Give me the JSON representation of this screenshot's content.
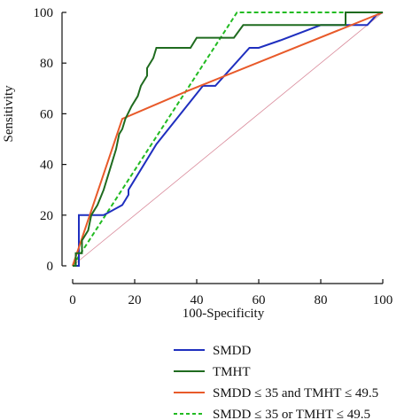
{
  "chart_data": {
    "type": "line",
    "xlabel": "100-Specificity",
    "ylabel": "Sensitivity",
    "xlim": [
      0,
      100
    ],
    "ylim": [
      0,
      100
    ],
    "xticks": [
      "0",
      "20",
      "40",
      "60",
      "80",
      "100"
    ],
    "yticks": [
      "0",
      "20",
      "40",
      "60",
      "80",
      "100"
    ],
    "grid": false,
    "legend_position": "bottom",
    "reference_line": {
      "x": [
        0,
        100
      ],
      "y": [
        0,
        100
      ],
      "color": "#d98a9a"
    },
    "series": [
      {
        "name": "SMDD",
        "color": "#1f2fbf",
        "dash": false,
        "x": [
          0,
          2,
          2,
          8,
          8,
          10,
          16,
          18,
          18,
          27,
          27,
          42,
          46,
          57,
          60,
          67,
          80,
          89,
          95,
          98,
          100
        ],
        "y": [
          0,
          0,
          20,
          20,
          20,
          20,
          24,
          28,
          30,
          48,
          48,
          71,
          71,
          86,
          86,
          89,
          95,
          95,
          95,
          99,
          100
        ]
      },
      {
        "name": "TMHT",
        "color": "#1f6b1f",
        "dash": false,
        "x": [
          0,
          1,
          1,
          3,
          3,
          5,
          6,
          8,
          10,
          12,
          14,
          15,
          16,
          17,
          19,
          21,
          22,
          24,
          24,
          26,
          27,
          29,
          29,
          31,
          36,
          38,
          40,
          47,
          52,
          55,
          57,
          66,
          88,
          88,
          90,
          90,
          100
        ],
        "y": [
          0,
          0,
          5,
          5,
          10,
          14,
          20,
          24,
          30,
          38,
          46,
          52,
          54,
          58,
          63,
          67,
          71,
          75,
          78,
          82,
          86,
          86,
          86,
          86,
          86,
          86,
          90,
          90,
          90,
          95,
          95,
          95,
          95,
          100,
          100,
          100,
          100
        ]
      },
      {
        "name": "SMDD ≤ 35 and TMHT ≤ 49.5",
        "color": "#e85a2a",
        "dash": false,
        "x": [
          0,
          16,
          37,
          100
        ],
        "y": [
          0,
          58,
          69,
          100
        ]
      },
      {
        "name": "SMDD ≤ 35 or TMHT ≤ 49.5",
        "color": "#22bb22",
        "dash": true,
        "x": [
          0,
          53,
          100
        ],
        "y": [
          0,
          100,
          100
        ]
      }
    ]
  }
}
